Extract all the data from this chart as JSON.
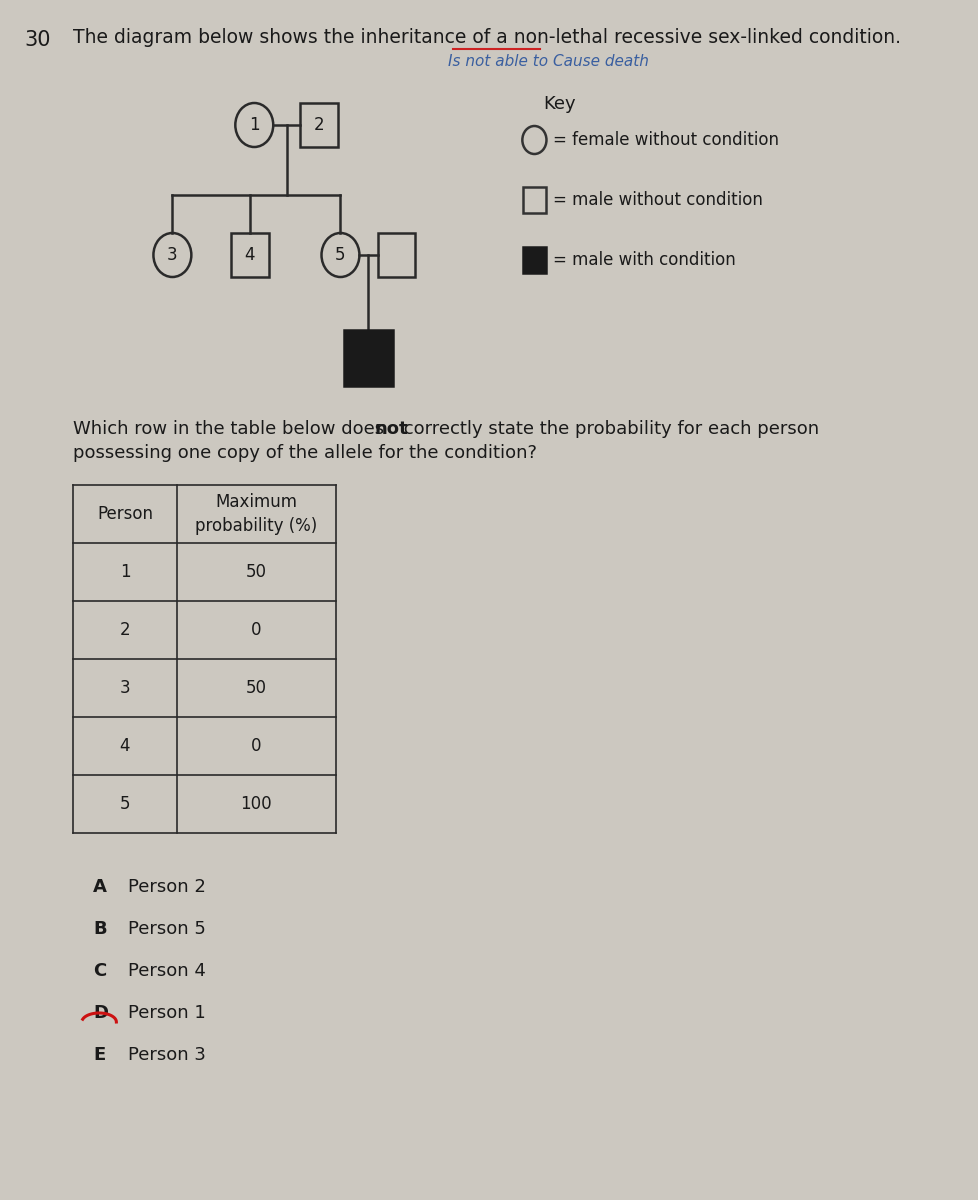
{
  "question_number": "30",
  "question_text": "The diagram below shows the inheritance of a non-lethal recessive sex-linked condition.",
  "annotation_line1": "Is not able to Cause death",
  "key_title": "Key",
  "key_items": [
    {
      "shape": "circle",
      "fill": "white",
      "label": "= female without condition"
    },
    {
      "shape": "square",
      "fill": "white",
      "label": "= male without condition"
    },
    {
      "shape": "square",
      "fill": "black",
      "label": "= male with condition"
    }
  ],
  "question2_pre": "Which row in the table below does ",
  "question2_bold": "not",
  "question2_post": " correctly state the probability for each person\npossessing one copy of the allele for the condition?",
  "table_headers": [
    "Person",
    "Maximum\nprobability (%)"
  ],
  "table_data": [
    [
      "1",
      "50"
    ],
    [
      "2",
      "0"
    ],
    [
      "3",
      "50"
    ],
    [
      "4",
      "0"
    ],
    [
      "5",
      "100"
    ]
  ],
  "answer_options": [
    {
      "letter": "A",
      "text": "Person 2"
    },
    {
      "letter": "B",
      "text": "Person 5"
    },
    {
      "letter": "C",
      "text": "Person 4"
    },
    {
      "letter": "D",
      "text": "Person 1"
    },
    {
      "letter": "E",
      "text": "Person 3"
    }
  ],
  "circled_answer": "D",
  "bg_color": "#ccc8c0",
  "text_color": "#1a1a1a",
  "annotation_color": "#3a5fa0",
  "red_underline_color": "#cc2222"
}
